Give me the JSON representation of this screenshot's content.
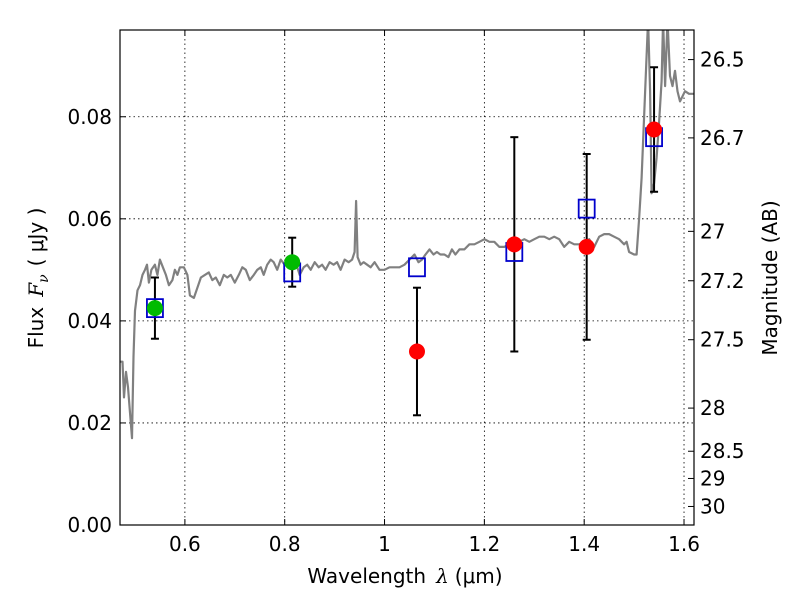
{
  "chart_data": {
    "type": "scatter",
    "xlabel": "Wavelength",
    "xlabel_math_symbol": "λ",
    "xlabel_unit": "(μm)",
    "ylabel": "Flux",
    "ylabel_math_symbol": "F",
    "ylabel_math_subscript": "ν",
    "ylabel_unit": "( μJy )",
    "y2label": "Magnitude (AB)",
    "xlim": [
      0.47,
      1.62
    ],
    "ylim": [
      0.0,
      0.097
    ],
    "grid": true,
    "x_ticks": [
      0.6,
      0.8,
      1.0,
      1.2,
      1.4,
      1.6
    ],
    "x_tick_labels": [
      "0.6",
      "0.8",
      "1",
      "1.2",
      "1.4",
      "1.6"
    ],
    "y_ticks": [
      0.0,
      0.02,
      0.04,
      0.06,
      0.08
    ],
    "y_tick_labels": [
      "0.00",
      "0.02",
      "0.04",
      "0.06",
      "0.08"
    ],
    "mag_ticks": [
      26.5,
      26.7,
      27,
      27.2,
      27.5,
      28,
      28.5,
      29,
      30
    ],
    "mag_tick_labels": [
      "26.5",
      "26.7",
      "27",
      "27.2",
      "27.5",
      "28",
      "28.5",
      "29",
      "30"
    ],
    "series": [
      {
        "name": "model spectrum",
        "kind": "line",
        "color": "#808080",
        "points": [
          [
            0.47,
            0.032
          ],
          [
            0.475,
            0.032
          ],
          [
            0.478,
            0.025
          ],
          [
            0.482,
            0.03
          ],
          [
            0.486,
            0.027
          ],
          [
            0.49,
            0.022
          ],
          [
            0.494,
            0.017
          ],
          [
            0.497,
            0.033
          ],
          [
            0.5,
            0.042
          ],
          [
            0.505,
            0.046
          ],
          [
            0.51,
            0.047
          ],
          [
            0.515,
            0.049
          ],
          [
            0.52,
            0.05
          ],
          [
            0.524,
            0.051
          ],
          [
            0.528,
            0.0475
          ],
          [
            0.533,
            0.05
          ],
          [
            0.54,
            0.051
          ],
          [
            0.545,
            0.049
          ],
          [
            0.55,
            0.052
          ],
          [
            0.556,
            0.0505
          ],
          [
            0.562,
            0.049
          ],
          [
            0.568,
            0.047
          ],
          [
            0.575,
            0.048
          ],
          [
            0.58,
            0.05
          ],
          [
            0.585,
            0.049
          ],
          [
            0.59,
            0.0505
          ],
          [
            0.598,
            0.0505
          ],
          [
            0.605,
            0.049
          ],
          [
            0.61,
            0.045
          ],
          [
            0.618,
            0.0445
          ],
          [
            0.625,
            0.0465
          ],
          [
            0.632,
            0.0485
          ],
          [
            0.64,
            0.049
          ],
          [
            0.648,
            0.0495
          ],
          [
            0.655,
            0.048
          ],
          [
            0.662,
            0.0485
          ],
          [
            0.67,
            0.047
          ],
          [
            0.678,
            0.049
          ],
          [
            0.685,
            0.0485
          ],
          [
            0.692,
            0.049
          ],
          [
            0.7,
            0.0475
          ],
          [
            0.708,
            0.049
          ],
          [
            0.715,
            0.0505
          ],
          [
            0.722,
            0.05
          ],
          [
            0.73,
            0.048
          ],
          [
            0.738,
            0.049
          ],
          [
            0.745,
            0.05
          ],
          [
            0.752,
            0.0505
          ],
          [
            0.758,
            0.049
          ],
          [
            0.765,
            0.051
          ],
          [
            0.772,
            0.052
          ],
          [
            0.778,
            0.0515
          ],
          [
            0.785,
            0.05
          ],
          [
            0.792,
            0.052
          ],
          [
            0.8,
            0.051
          ],
          [
            0.808,
            0.052
          ],
          [
            0.815,
            0.05
          ],
          [
            0.822,
            0.0515
          ],
          [
            0.83,
            0.049
          ],
          [
            0.838,
            0.0505
          ],
          [
            0.845,
            0.051
          ],
          [
            0.852,
            0.05
          ],
          [
            0.86,
            0.0515
          ],
          [
            0.868,
            0.0505
          ],
          [
            0.875,
            0.051
          ],
          [
            0.882,
            0.05
          ],
          [
            0.89,
            0.0515
          ],
          [
            0.898,
            0.051
          ],
          [
            0.905,
            0.0515
          ],
          [
            0.912,
            0.05
          ],
          [
            0.92,
            0.052
          ],
          [
            0.928,
            0.0515
          ],
          [
            0.935,
            0.052
          ],
          [
            0.94,
            0.0535
          ],
          [
            0.943,
            0.0635
          ],
          [
            0.946,
            0.0525
          ],
          [
            0.952,
            0.051
          ],
          [
            0.958,
            0.0515
          ],
          [
            0.965,
            0.051
          ],
          [
            0.972,
            0.0505
          ],
          [
            0.98,
            0.0515
          ],
          [
            0.99,
            0.05
          ],
          [
            1.0,
            0.05
          ],
          [
            1.01,
            0.0505
          ],
          [
            1.02,
            0.0505
          ],
          [
            1.03,
            0.0505
          ],
          [
            1.04,
            0.051
          ],
          [
            1.05,
            0.052
          ],
          [
            1.06,
            0.053
          ],
          [
            1.068,
            0.0515
          ],
          [
            1.075,
            0.052
          ],
          [
            1.082,
            0.053
          ],
          [
            1.09,
            0.054
          ],
          [
            1.098,
            0.053
          ],
          [
            1.105,
            0.0535
          ],
          [
            1.112,
            0.053
          ],
          [
            1.12,
            0.053
          ],
          [
            1.128,
            0.0525
          ],
          [
            1.135,
            0.054
          ],
          [
            1.142,
            0.053
          ],
          [
            1.15,
            0.054
          ],
          [
            1.16,
            0.054
          ],
          [
            1.17,
            0.055
          ],
          [
            1.18,
            0.055
          ],
          [
            1.19,
            0.0555
          ],
          [
            1.2,
            0.056
          ],
          [
            1.21,
            0.0555
          ],
          [
            1.22,
            0.0555
          ],
          [
            1.23,
            0.0545
          ],
          [
            1.24,
            0.0545
          ],
          [
            1.25,
            0.055
          ],
          [
            1.26,
            0.0555
          ],
          [
            1.27,
            0.0555
          ],
          [
            1.28,
            0.056
          ],
          [
            1.29,
            0.0555
          ],
          [
            1.3,
            0.056
          ],
          [
            1.31,
            0.0565
          ],
          [
            1.32,
            0.0565
          ],
          [
            1.33,
            0.056
          ],
          [
            1.34,
            0.0565
          ],
          [
            1.35,
            0.056
          ],
          [
            1.36,
            0.0545
          ],
          [
            1.37,
            0.0555
          ],
          [
            1.38,
            0.055
          ],
          [
            1.39,
            0.055
          ],
          [
            1.4,
            0.0555
          ],
          [
            1.41,
            0.056
          ],
          [
            1.42,
            0.0545
          ],
          [
            1.43,
            0.0565
          ],
          [
            1.44,
            0.057
          ],
          [
            1.45,
            0.057
          ],
          [
            1.46,
            0.0565
          ],
          [
            1.47,
            0.056
          ],
          [
            1.48,
            0.055
          ],
          [
            1.485,
            0.0555
          ],
          [
            1.49,
            0.0535
          ],
          [
            1.5,
            0.053
          ],
          [
            1.505,
            0.053
          ],
          [
            1.51,
            0.06
          ],
          [
            1.515,
            0.068
          ],
          [
            1.52,
            0.08
          ],
          [
            1.525,
            0.092
          ],
          [
            1.528,
            0.099
          ],
          [
            1.532,
            0.085
          ],
          [
            1.535,
            0.065
          ],
          [
            1.54,
            0.067
          ],
          [
            1.545,
            0.072
          ],
          [
            1.55,
            0.079
          ],
          [
            1.555,
            0.087
          ],
          [
            1.558,
            0.099
          ],
          [
            1.562,
            0.086
          ],
          [
            1.567,
            0.099
          ],
          [
            1.572,
            0.088
          ],
          [
            1.577,
            0.086
          ],
          [
            1.582,
            0.089
          ],
          [
            1.587,
            0.085
          ],
          [
            1.592,
            0.083
          ],
          [
            1.597,
            0.084
          ],
          [
            1.602,
            0.085
          ],
          [
            1.61,
            0.0845
          ],
          [
            1.62,
            0.0845
          ]
        ]
      },
      {
        "name": "model photometry",
        "kind": "square",
        "color": "#0000cc",
        "points": [
          [
            0.54,
            0.0425
          ],
          [
            0.815,
            0.0495
          ],
          [
            1.065,
            0.0505
          ],
          [
            1.26,
            0.0535
          ],
          [
            1.405,
            0.062
          ],
          [
            1.54,
            0.076
          ]
        ]
      },
      {
        "name": "detections",
        "kind": "circle",
        "color": "#00bb00",
        "points": [
          {
            "x": 0.54,
            "y": 0.0425,
            "err": 0.006
          },
          {
            "x": 0.815,
            "y": 0.0515,
            "err": 0.0048
          }
        ]
      },
      {
        "name": "observations",
        "kind": "circle",
        "color": "#ff0000",
        "points": [
          {
            "x": 1.065,
            "y": 0.034,
            "err": 0.0125
          },
          {
            "x": 1.26,
            "y": 0.055,
            "err": 0.021
          },
          {
            "x": 1.405,
            "y": 0.0545,
            "err": 0.0182
          },
          {
            "x": 1.54,
            "y": 0.0775,
            "err": 0.0122
          }
        ]
      }
    ]
  }
}
